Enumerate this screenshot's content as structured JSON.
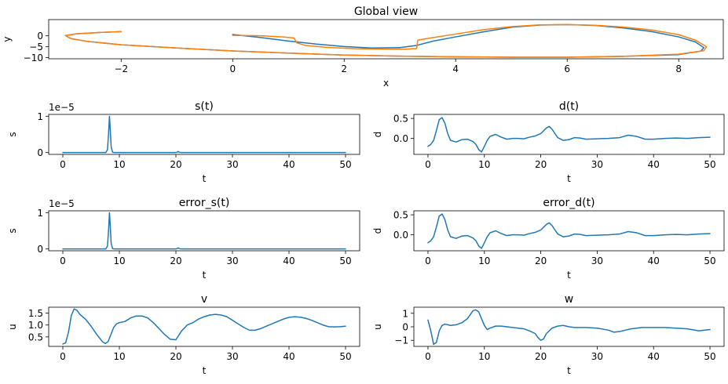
{
  "colors": {
    "series_a": "#1f77b4",
    "series_b": "#ff7f0e"
  },
  "chart_data": [
    {
      "id": "global",
      "type": "line",
      "title": "Global view",
      "xlabel": "x",
      "ylabel": "y",
      "xlim": [
        -3.3,
        8.8
      ],
      "ylim": [
        -10.5,
        7.4
      ],
      "xticks": [
        -2,
        0,
        2,
        4,
        6,
        8
      ],
      "yticks": [
        -10,
        -5,
        0
      ],
      "series": [
        {
          "color": "#1f77b4",
          "x": [
            0,
            0.5,
            1.0,
            1.5,
            2.0,
            2.5,
            3.0,
            3.3,
            3.6,
            4.0,
            4.5,
            5.0,
            5.5,
            6.0,
            6.5,
            7.0,
            7.5,
            8.0,
            8.3,
            8.45,
            8.4,
            8.0,
            7.0,
            6.0,
            5.0,
            4.0,
            3.0,
            2.0,
            1.0,
            0.0,
            -1.0,
            -2.0,
            -2.6,
            -2.9,
            -3.0,
            -2.8,
            -2.4,
            -2.0
          ],
          "y": [
            0.6,
            -0.8,
            -2.4,
            -3.8,
            -4.9,
            -5.6,
            -5.4,
            -4.4,
            -2.4,
            -0.5,
            1.8,
            3.9,
            4.9,
            5.1,
            4.7,
            3.6,
            2.0,
            -0.5,
            -2.8,
            -5.4,
            -7.0,
            -8.6,
            -9.4,
            -9.8,
            -9.8,
            -9.6,
            -9.3,
            -8.8,
            -7.9,
            -6.9,
            -5.6,
            -4.1,
            -2.6,
            -1.3,
            0.1,
            0.9,
            1.5,
            1.9
          ]
        },
        {
          "color": "#ff7f0e",
          "x": [
            0,
            0.5,
            0.9,
            1.1,
            1.15,
            1.3,
            1.7,
            2.2,
            2.7,
            3.1,
            3.3,
            3.32,
            3.5,
            4.0,
            4.5,
            5.0,
            5.5,
            6.0,
            6.5,
            7.0,
            7.5,
            8.0,
            8.3,
            8.5,
            8.45,
            8.0,
            7.0,
            6.0,
            5.0,
            4.0,
            3.0,
            2.0,
            1.0,
            0.0,
            -1.0,
            -2.0,
            -2.6,
            -2.9,
            -3.0,
            -2.8,
            -2.4,
            -2.0
          ],
          "y": [
            0.2,
            0.0,
            -0.5,
            -1.0,
            -3.2,
            -4.4,
            -5.3,
            -5.9,
            -6.1,
            -6.1,
            -5.8,
            -2.0,
            -1.2,
            0.8,
            2.8,
            4.2,
            5.0,
            5.1,
            4.8,
            4.0,
            2.7,
            0.5,
            -2.0,
            -5.0,
            -6.8,
            -8.4,
            -9.4,
            -9.8,
            -9.8,
            -9.6,
            -9.3,
            -8.8,
            -7.9,
            -6.9,
            -5.6,
            -4.1,
            -2.6,
            -1.3,
            0.1,
            0.9,
            1.5,
            1.9
          ]
        }
      ]
    },
    {
      "id": "s_t",
      "type": "line",
      "title": "s(t)",
      "xlabel": "t",
      "ylabel": "s",
      "offset_text": "1e−5",
      "xlim": [
        -2.5,
        52.5
      ],
      "ylim": [
        -0.05,
        1.05
      ],
      "xticks": [
        0,
        10,
        20,
        30,
        40,
        50
      ],
      "yticks": [
        0,
        1
      ],
      "series": [
        {
          "color": "#1f77b4",
          "x": [
            0,
            7.6,
            7.9,
            8.1,
            8.25,
            8.4,
            8.55,
            8.8,
            9.1,
            20.0,
            20.2,
            20.4,
            20.6,
            20.9,
            50
          ],
          "y": [
            0,
            0,
            0.08,
            0.55,
            1.0,
            0.6,
            0.15,
            0.01,
            0,
            0,
            0.01,
            0.03,
            0.01,
            0,
            0
          ]
        }
      ]
    },
    {
      "id": "d_t",
      "type": "line",
      "title": "d(t)",
      "xlabel": "t",
      "ylabel": "d",
      "xlim": [
        -2.5,
        52.5
      ],
      "ylim": [
        -0.4,
        0.6
      ],
      "xticks": [
        0,
        10,
        20,
        30,
        40,
        50
      ],
      "yticks": [
        0.0,
        0.5
      ],
      "ytick_labels": [
        "0.0",
        "0.5"
      ],
      "series": [
        {
          "color": "#1f77b4",
          "x": [
            0,
            0.5,
            1.0,
            1.5,
            2.0,
            2.5,
            3.0,
            3.5,
            4.0,
            5.0,
            6.0,
            7.0,
            8.0,
            8.5,
            9.0,
            9.5,
            10.0,
            10.5,
            11.0,
            12.0,
            13.0,
            14.0,
            15.0,
            16.0,
            17.0,
            18.0,
            19.0,
            20.0,
            21.0,
            21.5,
            22.0,
            23.0,
            24.0,
            25.0,
            26.0,
            27.0,
            28.0,
            30.0,
            32.0,
            34.0,
            35.5,
            37.0,
            38.5,
            40.0,
            42.0,
            44.0,
            46.0,
            48.0,
            50.0
          ],
          "y": [
            -0.2,
            -0.15,
            -0.05,
            0.2,
            0.47,
            0.52,
            0.38,
            0.12,
            -0.05,
            -0.09,
            -0.03,
            -0.02,
            -0.08,
            -0.15,
            -0.28,
            -0.34,
            -0.2,
            -0.05,
            0.05,
            0.1,
            0.03,
            -0.02,
            0.0,
            0.0,
            -0.01,
            0.03,
            0.06,
            0.12,
            0.26,
            0.3,
            0.23,
            0.02,
            -0.05,
            -0.03,
            0.02,
            0.01,
            -0.02,
            -0.01,
            0.0,
            0.02,
            0.08,
            0.05,
            -0.02,
            -0.02,
            0.0,
            0.01,
            0.0,
            0.02,
            0.03
          ]
        }
      ]
    },
    {
      "id": "error_s_t",
      "type": "line",
      "title": "error_s(t)",
      "xlabel": "t",
      "ylabel": "s",
      "offset_text": "1e−5",
      "xlim": [
        -2.5,
        52.5
      ],
      "ylim": [
        -0.05,
        1.05
      ],
      "xticks": [
        0,
        10,
        20,
        30,
        40,
        50
      ],
      "yticks": [
        0,
        1
      ],
      "series": [
        {
          "color": "#1f77b4",
          "x": [
            0,
            7.6,
            7.9,
            8.1,
            8.25,
            8.4,
            8.55,
            8.8,
            9.1,
            20.0,
            20.2,
            20.4,
            20.6,
            20.9,
            50
          ],
          "y": [
            0,
            0,
            0.08,
            0.55,
            1.0,
            0.6,
            0.15,
            0.01,
            0,
            0,
            0.01,
            0.03,
            0.01,
            0,
            0
          ]
        }
      ]
    },
    {
      "id": "error_d_t",
      "type": "line",
      "title": "error_d(t)",
      "xlabel": "t",
      "ylabel": "d",
      "xlim": [
        -2.5,
        52.5
      ],
      "ylim": [
        -0.4,
        0.6
      ],
      "xticks": [
        0,
        10,
        20,
        30,
        40,
        50
      ],
      "yticks": [
        0.0,
        0.5
      ],
      "ytick_labels": [
        "0.0",
        "0.5"
      ],
      "series": [
        {
          "color": "#1f77b4",
          "x": [
            0,
            0.5,
            1.0,
            1.5,
            2.0,
            2.5,
            3.0,
            3.5,
            4.0,
            5.0,
            6.0,
            7.0,
            8.0,
            8.5,
            9.0,
            9.5,
            10.0,
            10.5,
            11.0,
            12.0,
            13.0,
            14.0,
            15.0,
            16.0,
            17.0,
            18.0,
            19.0,
            20.0,
            21.0,
            21.5,
            22.0,
            23.0,
            24.0,
            25.0,
            26.0,
            27.0,
            28.0,
            30.0,
            32.0,
            34.0,
            35.5,
            37.0,
            38.5,
            40.0,
            42.0,
            44.0,
            46.0,
            48.0,
            50.0
          ],
          "y": [
            -0.2,
            -0.15,
            -0.05,
            0.2,
            0.47,
            0.52,
            0.38,
            0.12,
            -0.05,
            -0.09,
            -0.03,
            -0.02,
            -0.08,
            -0.15,
            -0.28,
            -0.34,
            -0.2,
            -0.05,
            0.05,
            0.1,
            0.03,
            -0.02,
            0.0,
            0.0,
            -0.01,
            0.03,
            0.06,
            0.12,
            0.26,
            0.3,
            0.23,
            0.02,
            -0.05,
            -0.03,
            0.02,
            0.01,
            -0.02,
            -0.01,
            0.0,
            0.02,
            0.08,
            0.05,
            -0.02,
            -0.02,
            0.0,
            0.01,
            0.0,
            0.02,
            0.03
          ]
        }
      ]
    },
    {
      "id": "v",
      "type": "line",
      "title": "v",
      "xlabel": "t",
      "ylabel": "u",
      "xlim": [
        -2.5,
        52.5
      ],
      "ylim": [
        0.1,
        1.75
      ],
      "xticks": [
        0,
        10,
        20,
        30,
        40,
        50
      ],
      "yticks": [
        0.5,
        1.0,
        1.5
      ],
      "ytick_labels": [
        "0.5",
        "1.0",
        "1.5"
      ],
      "series": [
        {
          "color": "#1f77b4",
          "x": [
            0,
            0.5,
            1.0,
            1.5,
            2.0,
            2.5,
            3.0,
            4.0,
            5.0,
            6.0,
            7.0,
            7.5,
            8.0,
            8.5,
            9.0,
            9.5,
            10.0,
            11.0,
            12.0,
            13.0,
            14.0,
            15.0,
            16.0,
            17.0,
            18.0,
            19.0,
            20.0,
            21.0,
            22.0,
            23.0,
            24.0,
            25.0,
            26.0,
            27.0,
            28.0,
            29.0,
            30.0,
            31.0,
            32.0,
            33.0,
            34.0,
            35.0,
            36.0,
            37.0,
            38.0,
            39.0,
            40.0,
            41.0,
            42.0,
            43.0,
            44.0,
            45.0,
            46.0,
            47.0,
            48.0,
            49.0,
            50.0
          ],
          "y": [
            0.2,
            0.25,
            0.7,
            1.4,
            1.68,
            1.62,
            1.45,
            1.25,
            0.95,
            0.6,
            0.3,
            0.22,
            0.3,
            0.6,
            0.9,
            1.05,
            1.1,
            1.15,
            1.3,
            1.38,
            1.38,
            1.3,
            1.1,
            0.85,
            0.6,
            0.4,
            0.38,
            0.75,
            1.0,
            1.1,
            1.25,
            1.35,
            1.42,
            1.45,
            1.42,
            1.35,
            1.2,
            1.05,
            0.9,
            0.78,
            0.78,
            0.85,
            0.95,
            1.05,
            1.15,
            1.25,
            1.32,
            1.35,
            1.33,
            1.28,
            1.2,
            1.1,
            1.0,
            0.93,
            0.92,
            0.93,
            0.95
          ]
        }
      ]
    },
    {
      "id": "w",
      "type": "line",
      "title": "w",
      "xlabel": "t",
      "ylabel": "u",
      "xlim": [
        -2.5,
        52.5
      ],
      "ylim": [
        -1.45,
        1.45
      ],
      "xticks": [
        0,
        10,
        20,
        30,
        40,
        50
      ],
      "yticks": [
        -1,
        0,
        1
      ],
      "ytick_labels": [
        "−1",
        "0",
        "1"
      ],
      "series": [
        {
          "color": "#1f77b4",
          "x": [
            0,
            0.5,
            1.0,
            1.5,
            2.0,
            2.5,
            3.0,
            4.0,
            5.0,
            6.0,
            7.0,
            7.5,
            8.0,
            8.5,
            9.0,
            9.5,
            10.0,
            10.5,
            11.0,
            12.0,
            13.0,
            14.0,
            15.0,
            16.0,
            17.0,
            18.0,
            19.0,
            19.5,
            20.0,
            20.5,
            21.0,
            22.0,
            23.0,
            24.0,
            25.0,
            26.0,
            28.0,
            30.0,
            32.0,
            33.0,
            34.0,
            35.0,
            36.0,
            37.0,
            38.0,
            40.0,
            42.0,
            44.0,
            46.0,
            48.0,
            50.0
          ],
          "y": [
            0.5,
            -0.3,
            -1.3,
            -1.15,
            -0.3,
            0.1,
            0.2,
            0.1,
            0.15,
            0.3,
            0.6,
            0.9,
            1.2,
            1.25,
            1.1,
            0.6,
            0.1,
            -0.2,
            -0.1,
            0.05,
            0.05,
            0.0,
            -0.05,
            -0.1,
            -0.15,
            -0.3,
            -0.5,
            -0.8,
            -1.0,
            -0.9,
            -0.5,
            -0.1,
            0.05,
            0.1,
            0.0,
            -0.05,
            -0.05,
            -0.1,
            -0.25,
            -0.4,
            -0.35,
            -0.25,
            -0.15,
            -0.1,
            -0.05,
            -0.05,
            -0.05,
            -0.1,
            -0.15,
            -0.3,
            -0.2
          ]
        }
      ]
    }
  ]
}
